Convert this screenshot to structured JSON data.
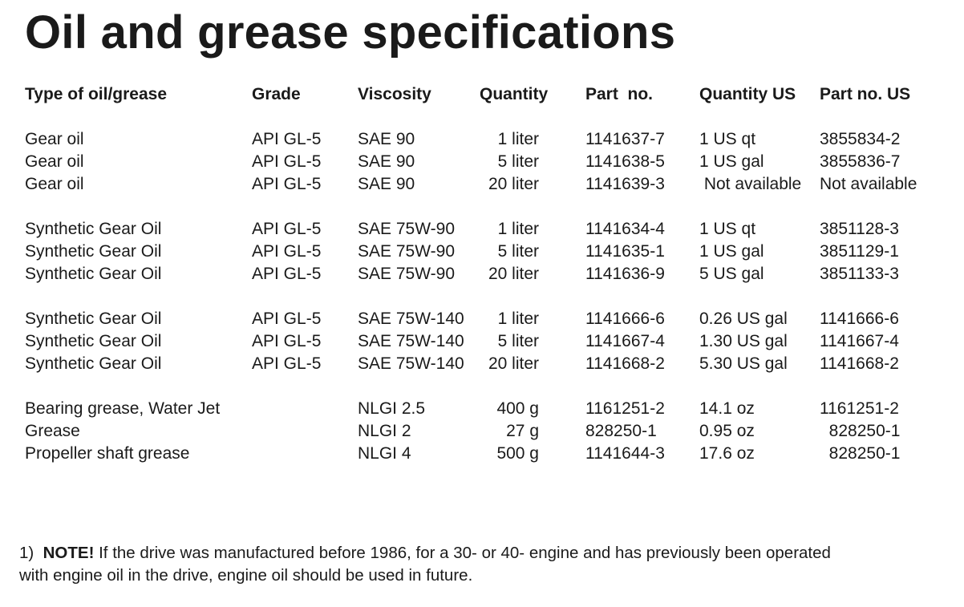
{
  "title": "Oil and grease specifications",
  "headers": {
    "type": "Type of oil/grease",
    "grade": "Grade",
    "viscosity": "Viscosity",
    "quantity": "Quantity",
    "part_no": "Part  no.",
    "quantity_us": "Quantity US",
    "part_no_us": "Part no. US"
  },
  "rows": [
    {
      "type": "Gear oil",
      "grade": "API GL-5",
      "viscosity": "SAE 90",
      "quantity": "1 liter",
      "part_no": "1141637-7",
      "quantity_us": "1 US qt",
      "part_no_us": "3855834-2"
    },
    {
      "type": "Gear oil",
      "grade": "API GL-5",
      "viscosity": "SAE 90",
      "quantity": "5 liter",
      "part_no": "1141638-5",
      "quantity_us": "1 US gal",
      "part_no_us": "3855836-7"
    },
    {
      "type": "Gear oil",
      "grade": "API GL-5",
      "viscosity": "SAE 90",
      "quantity": "20 liter",
      "part_no": "1141639-3",
      "quantity_us": " Not available",
      "part_no_us": "Not available"
    },
    {
      "type": "Synthetic Gear Oil",
      "grade": "API GL-5",
      "viscosity": "SAE 75W-90",
      "quantity": "1 liter",
      "part_no": "1141634-4",
      "quantity_us": "1 US qt",
      "part_no_us": "3851128-3"
    },
    {
      "type": "Synthetic Gear Oil",
      "grade": "API GL-5",
      "viscosity": "SAE 75W-90",
      "quantity": "5 liter",
      "part_no": "1141635-1",
      "quantity_us": "1 US gal",
      "part_no_us": "3851129-1"
    },
    {
      "type": "Synthetic Gear Oil",
      "grade": "API GL-5",
      "viscosity": "SAE 75W-90",
      "quantity": "20 liter",
      "part_no": "1141636-9",
      "quantity_us": "5 US gal",
      "part_no_us": "3851133-3"
    },
    {
      "type": "Synthetic Gear Oil",
      "grade": "API GL-5",
      "viscosity": "SAE 75W-140",
      "quantity": "1 liter",
      "part_no": "1141666-6",
      "quantity_us": "0.26 US gal",
      "part_no_us": "1141666-6"
    },
    {
      "type": "Synthetic Gear Oil",
      "grade": "API GL-5",
      "viscosity": "SAE 75W-140",
      "quantity": "5 liter",
      "part_no": "1141667-4",
      "quantity_us": "1.30 US gal",
      "part_no_us": "1141667-4"
    },
    {
      "type": "Synthetic Gear Oil",
      "grade": "API GL-5",
      "viscosity": "SAE 75W-140",
      "quantity": "20 liter",
      "part_no": "1141668-2",
      "quantity_us": "5.30 US gal",
      "part_no_us": "1141668-2"
    },
    {
      "type": "Bearing grease, Water Jet",
      "grade": "",
      "viscosity": "NLGI 2.5",
      "quantity": "400 g",
      "part_no": "1161251-2",
      "quantity_us": "14.1 oz",
      "part_no_us": "1161251-2"
    },
    {
      "type": "Grease",
      "grade": "",
      "viscosity": "NLGI 2",
      "quantity": "27 g",
      "part_no": "828250-1",
      "quantity_us": "0.95 oz",
      "part_no_us": "  828250-1"
    },
    {
      "type": "Propeller shaft grease",
      "grade": "",
      "viscosity": "NLGI 4",
      "quantity": "500 g",
      "part_no": "1141644-3",
      "quantity_us": "17.6 oz",
      "part_no_us": "  828250-1"
    }
  ],
  "note": {
    "prefix": "1)  ",
    "label": "NOTE!",
    "line1": " If the drive was manufactured before 1986, for a 30- or 40- engine and has previously been operated",
    "line2": "with engine oil in the drive, engine oil should be used  in future."
  }
}
